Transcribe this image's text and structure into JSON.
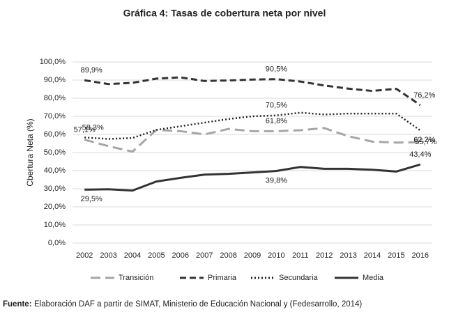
{
  "chart_data": {
    "type": "line",
    "title": "Gráfica 4: Tasas de cobertura neta por nivel",
    "ylabel": "Cbertura Neta (%)",
    "categories": [
      "2002",
      "2003",
      "2004",
      "2005",
      "2006",
      "2007",
      "2008",
      "2009",
      "2010",
      "2011",
      "2012",
      "2013",
      "2014",
      "2015",
      "2016"
    ],
    "ylim": [
      0,
      100
    ],
    "yticks": [
      {
        "value": 0,
        "label": "0,0%"
      },
      {
        "value": 10,
        "label": "10,0%"
      },
      {
        "value": 20,
        "label": "20,0%"
      },
      {
        "value": 30,
        "label": "30,0%"
      },
      {
        "value": 40,
        "label": "40,0%"
      },
      {
        "value": 50,
        "label": "50,0%"
      },
      {
        "value": 60,
        "label": "60,0%"
      },
      {
        "value": 70,
        "label": "70,0%"
      },
      {
        "value": 80,
        "label": "80,0%"
      },
      {
        "value": 90,
        "label": "90,0%"
      },
      {
        "value": 100,
        "label": "100,0%"
      }
    ],
    "grid": true,
    "legend": "bottom",
    "series": [
      {
        "name": "Transición",
        "color": "#a6a6a6",
        "dash": "long-dash",
        "values": [
          57.1,
          53.5,
          50.5,
          62.5,
          61.8,
          60.0,
          63.0,
          61.8,
          61.8,
          62.3,
          63.5,
          59.0,
          56.0,
          55.5,
          55.7
        ],
        "value_labels": [
          "57,1%",
          null,
          null,
          null,
          null,
          null,
          null,
          null,
          "61,8%",
          null,
          null,
          null,
          null,
          null,
          "55,7%"
        ]
      },
      {
        "name": "Primaria",
        "color": "#333333",
        "dash": "dash",
        "values": [
          89.9,
          87.8,
          88.5,
          90.8,
          91.5,
          89.5,
          89.8,
          90.3,
          90.5,
          89.2,
          87.0,
          85.3,
          84.0,
          85.2,
          76.2
        ],
        "value_labels": [
          "89,9%",
          null,
          null,
          null,
          null,
          null,
          null,
          null,
          "90,5%",
          null,
          null,
          null,
          null,
          null,
          "76,2%"
        ]
      },
      {
        "name": "Secundaria",
        "color": "#222222",
        "dash": "dot",
        "values": [
          58.3,
          57.5,
          58.0,
          62.5,
          64.5,
          66.5,
          68.5,
          70.0,
          70.5,
          72.0,
          71.0,
          71.5,
          71.5,
          71.5,
          62.2
        ],
        "value_labels": [
          "58,3%",
          null,
          null,
          null,
          null,
          null,
          null,
          null,
          "70,5%",
          null,
          null,
          null,
          null,
          null,
          "62,2%"
        ]
      },
      {
        "name": "Media",
        "color": "#333333",
        "dash": "solid",
        "values": [
          29.5,
          29.7,
          29.0,
          34.0,
          36.0,
          37.8,
          38.2,
          39.0,
          39.8,
          42.0,
          41.0,
          41.0,
          40.5,
          39.5,
          43.4
        ],
        "value_labels": [
          "29,5%",
          null,
          null,
          null,
          null,
          null,
          null,
          null,
          "39,8%",
          null,
          null,
          null,
          null,
          null,
          "43,4%"
        ]
      }
    ],
    "footnote": {
      "label": "Fuente:",
      "text": "Elaboración DAF a partir de SIMAT, Ministerio de Educación Nacional y (Fedesarrollo, 2014)"
    }
  }
}
